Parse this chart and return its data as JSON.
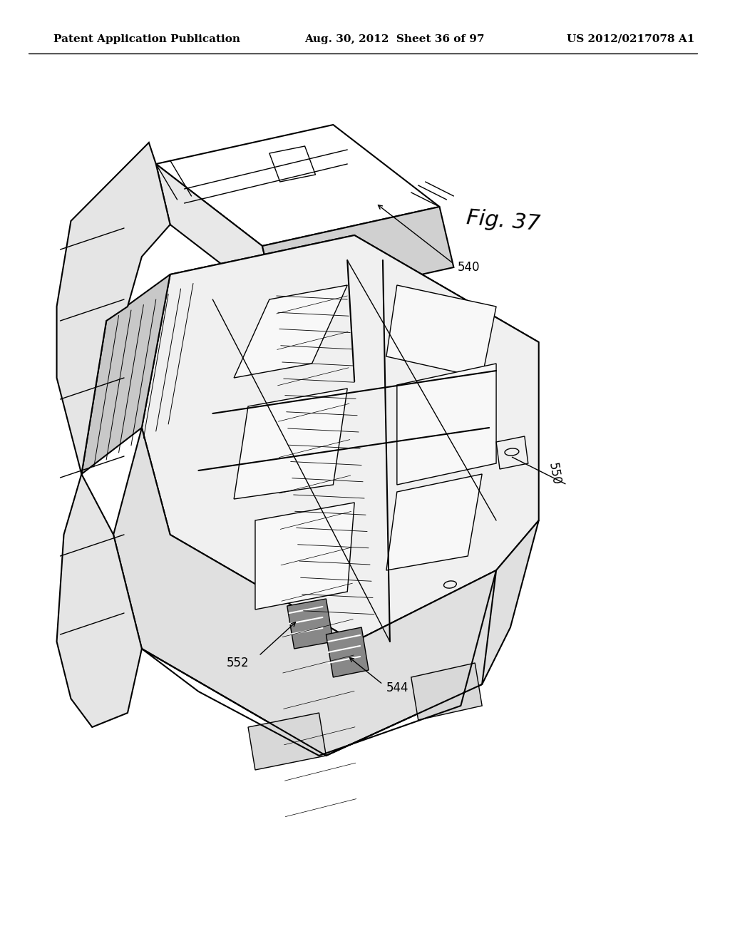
{
  "background_color": "#ffffff",
  "header_left": "Patent Application Publication",
  "header_center": "Aug. 30, 2012  Sheet 36 of 97",
  "header_right": "US 2012/0217078 A1",
  "fig_label": "Fig. 37",
  "ref_numbers": [
    "540",
    "544",
    "550",
    "552"
  ],
  "title_color": "#000000",
  "line_color": "#000000",
  "hatch_color": "#000000",
  "header_fontsize": 11,
  "fig_label_fontsize": 22,
  "ref_fontsize": 12
}
